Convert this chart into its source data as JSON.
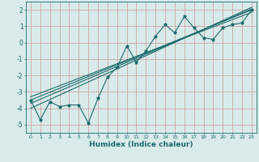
{
  "xlabel": "Humidex (Indice chaleur)",
  "ylabel": "",
  "bg_color": "#d8eaea",
  "grid_color": "#cc9999",
  "line_color": "#1a6b6b",
  "xlim": [
    -0.5,
    23.5
  ],
  "ylim": [
    -5.5,
    2.5
  ],
  "xticks": [
    0,
    1,
    2,
    3,
    4,
    5,
    6,
    7,
    8,
    9,
    10,
    11,
    12,
    13,
    14,
    15,
    16,
    17,
    18,
    19,
    20,
    21,
    22,
    23
  ],
  "yticks": [
    -5,
    -4,
    -3,
    -2,
    -1,
    0,
    1,
    2
  ],
  "scatter_x": [
    0,
    1,
    2,
    3,
    4,
    5,
    6,
    7,
    8,
    9,
    10,
    11,
    12,
    13,
    14,
    15,
    16,
    17,
    18,
    19,
    20,
    21,
    22,
    23
  ],
  "scatter_y": [
    -3.5,
    -4.7,
    -3.6,
    -3.9,
    -3.8,
    -3.8,
    -4.9,
    -3.4,
    -2.1,
    -1.5,
    -0.2,
    -1.2,
    -0.5,
    0.4,
    1.1,
    0.6,
    1.6,
    0.9,
    0.3,
    0.2,
    0.9,
    1.1,
    1.2,
    2.0
  ],
  "line1_x": [
    0,
    23
  ],
  "line1_y": [
    -3.5,
    2.0
  ],
  "line2_x": [
    0,
    23
  ],
  "line2_y": [
    -3.3,
    1.85
  ],
  "line3_x": [
    0,
    23
  ],
  "line3_y": [
    -3.7,
    2.05
  ],
  "line4_x": [
    0,
    23
  ],
  "line4_y": [
    -4.0,
    2.15
  ]
}
